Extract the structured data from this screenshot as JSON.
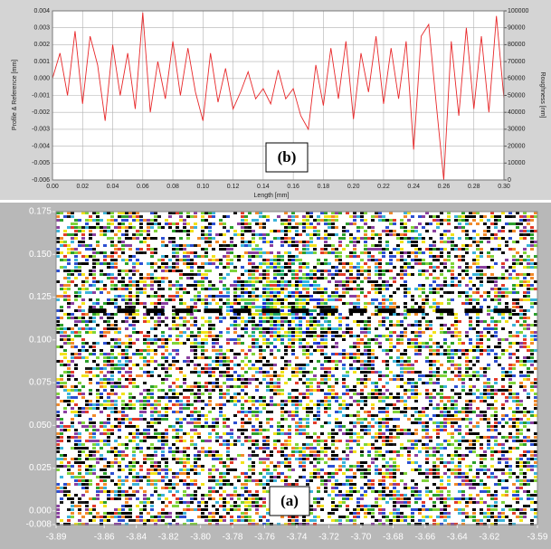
{
  "chart_data": [
    {
      "type": "line",
      "annotation": "(b)",
      "x_label": "Length [mm]",
      "y_label": "Profile & Reference [mm]",
      "y2_label": "Roughness [nm]",
      "color": "#e8282a",
      "grid": true,
      "x": [
        0,
        0.005,
        0.01,
        0.015,
        0.02,
        0.025,
        0.03,
        0.035,
        0.04,
        0.045,
        0.05,
        0.055,
        0.06,
        0.065,
        0.07,
        0.075,
        0.08,
        0.085,
        0.09,
        0.095,
        0.1,
        0.105,
        0.11,
        0.115,
        0.12,
        0.125,
        0.13,
        0.135,
        0.14,
        0.145,
        0.15,
        0.155,
        0.16,
        0.165,
        0.17,
        0.175,
        0.18,
        0.185,
        0.19,
        0.195,
        0.2,
        0.205,
        0.21,
        0.215,
        0.22,
        0.225,
        0.23,
        0.235,
        0.24,
        0.245,
        0.25,
        0.255,
        0.26,
        0.265,
        0.27,
        0.275,
        0.28,
        0.285,
        0.29,
        0.295,
        0.3
      ],
      "values": [
        0,
        0.0015,
        -0.001,
        0.0028,
        -0.0015,
        0.0025,
        0.0008,
        -0.0025,
        0.002,
        -0.001,
        0.0015,
        -0.0018,
        0.0039,
        -0.002,
        0.001,
        -0.0012,
        0.0022,
        -0.001,
        0.0018,
        -0.0008,
        -0.0025,
        0.0015,
        -0.0014,
        0.0006,
        -0.0018,
        -0.0008,
        0.0004,
        -0.0012,
        -0.0006,
        -0.0015,
        0.0005,
        -0.0012,
        -0.0006,
        -0.0022,
        -0.003,
        0.0008,
        -0.0016,
        0.0018,
        -0.0012,
        0.0022,
        -0.0024,
        0.0015,
        -0.0008,
        0.0025,
        -0.0015,
        0.0018,
        -0.0012,
        0.0022,
        -0.0042,
        0.0025,
        0.0032,
        -0.0015,
        -0.006,
        0.0022,
        -0.0022,
        0.003,
        -0.0018,
        0.0025,
        -0.002,
        0.0037,
        -0.0012
      ],
      "xlim": [
        0,
        0.3
      ],
      "xticks": [
        {
          "value": 0,
          "label": "0.00"
        },
        0.02,
        0.04,
        0.06,
        0.08,
        {
          "value": 0.1,
          "label": "0.10"
        },
        0.12,
        0.14,
        0.16,
        0.18,
        {
          "value": 0.2,
          "label": "0.20"
        },
        0.22,
        0.24,
        0.26,
        0.28,
        {
          "value": 0.3,
          "label": "0.30"
        }
      ],
      "ylim": [
        -0.006,
        0.004
      ],
      "yticks": [
        -0.006,
        -0.005,
        -0.004,
        -0.003,
        -0.002,
        -0.001,
        {
          "value": 0,
          "label": "0.000"
        },
        0.001,
        0.002,
        0.003,
        0.004
      ],
      "y2lim": [
        0,
        100000
      ],
      "y2ticks": [
        0,
        10000,
        20000,
        30000,
        40000,
        50000,
        60000,
        70000,
        80000,
        90000,
        100000
      ]
    },
    {
      "type": "map",
      "annotation": "(a)",
      "dashed_line_y": 0.117,
      "xlim": [
        -3.89,
        -3.59
      ],
      "xticks": [
        -3.89,
        -3.86,
        -3.84,
        -3.82,
        {
          "value": -3.8,
          "label": "-3.80"
        },
        -3.78,
        -3.76,
        -3.74,
        -3.72,
        {
          "value": -3.7,
          "label": "-3.70"
        },
        -3.68,
        -3.66,
        -3.64,
        -3.62,
        -3.59
      ],
      "ylim": [
        -0.008,
        0.175
      ],
      "yticks": [
        -0.008,
        {
          "value": 0,
          "label": "0.000"
        },
        0.025,
        {
          "value": 0.05,
          "label": "0.050"
        },
        0.075,
        {
          "value": 0.1,
          "label": "0.100"
        },
        0.125,
        {
          "value": 0.15,
          "label": "0.150"
        },
        0.175
      ]
    }
  ]
}
